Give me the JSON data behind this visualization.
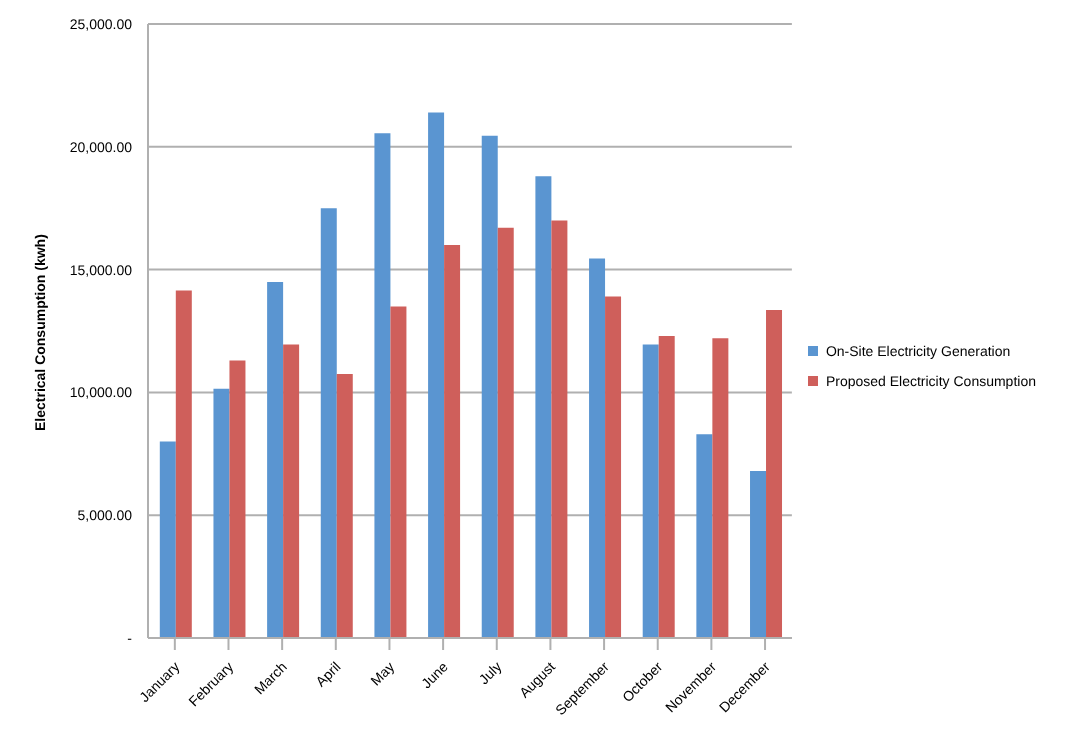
{
  "chart_data": {
    "type": "bar",
    "ylabel": "Electrical Consumption (kwh)",
    "categories": [
      "January",
      "February",
      "March",
      "April",
      "May",
      "June",
      "July",
      "August",
      "September",
      "October",
      "November",
      "December"
    ],
    "series": [
      {
        "name": "On-Site Electricity Generation",
        "color": "#5a95d1",
        "values": [
          8000,
          10150,
          14500,
          17500,
          20550,
          21400,
          20450,
          18800,
          15450,
          11950,
          8300,
          6800
        ]
      },
      {
        "name": "Proposed Electricity Consumption",
        "color": "#cf5f5b",
        "values": [
          14150,
          11300,
          11950,
          10750,
          13500,
          16000,
          16700,
          17000,
          13900,
          12300,
          12200,
          13350
        ]
      }
    ],
    "ylim": [
      0,
      25000
    ],
    "yticks": [
      {
        "value": 0,
        "label": "-"
      },
      {
        "value": 5000,
        "label": "5,000.00"
      },
      {
        "value": 10000,
        "label": "10,000.00"
      },
      {
        "value": 15000,
        "label": "15,000.00"
      },
      {
        "value": 20000,
        "label": "20,000.00"
      },
      {
        "value": 25000,
        "label": "25,000.00"
      }
    ],
    "grid": "y",
    "legend": "right"
  }
}
